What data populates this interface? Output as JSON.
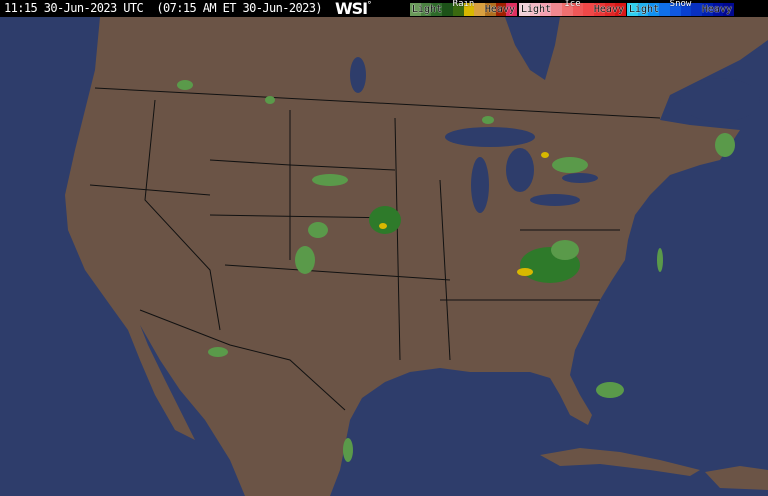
{
  "header": {
    "timestamp": "11:15 30-Jun-2023 UTC  (07:15 AM ET 30-Jun-2023)",
    "logo": "WSI",
    "logo_mark": "°"
  },
  "legend": [
    {
      "title": "Rain",
      "light": "Light",
      "heavy": "Heavy",
      "colors": [
        "#6a9a5a",
        "#4a8040",
        "#2e6a2a",
        "#1c5218",
        "#3a6a10",
        "#d8b800",
        "#d8a040",
        "#b07020",
        "#a02000",
        "#e03060"
      ]
    },
    {
      "title": "Ice",
      "light": "Light",
      "heavy": "Heavy",
      "colors": [
        "#f0d0d8",
        "#f4b8c4",
        "#f4a0b0",
        "#f08890",
        "#f07070",
        "#f05858",
        "#f04848",
        "#e83838",
        "#e02828",
        "#d81818"
      ]
    },
    {
      "title": "Snow",
      "light": "Light",
      "heavy": "Heavy",
      "colors": [
        "#30d0f0",
        "#20b0f0",
        "#1090f0",
        "#1070e8",
        "#1058e0",
        "#0840d0",
        "#0830c0",
        "#0020b0",
        "#0010a0",
        "#000890"
      ]
    }
  ],
  "colors": {
    "land": "#6b5446",
    "water": "#2e3d6b",
    "borders": "#111111",
    "radar_light": "#5a9a4a",
    "radar_moderate": "#2e7a2a",
    "radar_heavy": "#d8b800"
  }
}
